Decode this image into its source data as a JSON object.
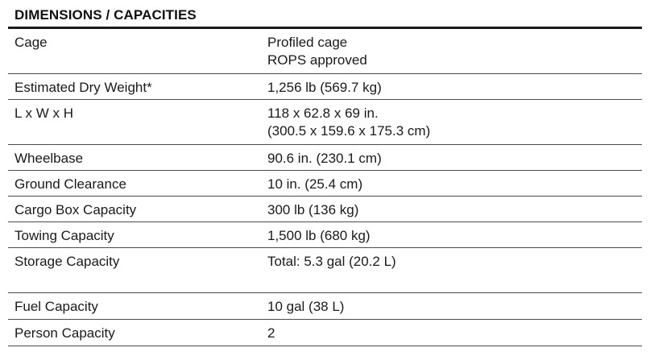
{
  "section": {
    "title": "DIMENSIONS / CAPACITIES"
  },
  "rows": [
    {
      "label": "Cage",
      "value_lines": [
        "Profiled cage",
        "ROPS approved"
      ]
    },
    {
      "label": "Estimated Dry Weight*",
      "value_lines": [
        "1,256 lb (569.7 kg)"
      ]
    },
    {
      "label": "L x W x H",
      "value_lines": [
        "118 x 62.8 x 69 in.",
        "(300.5 x 159.6 x 175.3 cm)"
      ]
    },
    {
      "label": "Wheelbase",
      "value_lines": [
        "90.6 in. (230.1 cm)"
      ]
    },
    {
      "label": "Ground Clearance",
      "value_lines": [
        "10 in. (25.4 cm)"
      ]
    },
    {
      "label": "Cargo Box Capacity",
      "value_lines": [
        "300 lb (136 kg)"
      ]
    },
    {
      "label": "Towing Capacity",
      "value_lines": [
        "1,500 lb (680 kg)"
      ]
    },
    {
      "label": "Storage Capacity",
      "value_lines": [
        "Total: 5.3 gal (20.2 L)"
      ]
    },
    {
      "label": "Fuel Capacity",
      "value_lines": [
        "10 gal (38 L)"
      ]
    },
    {
      "label": "Person Capacity",
      "value_lines": [
        "2"
      ]
    }
  ]
}
